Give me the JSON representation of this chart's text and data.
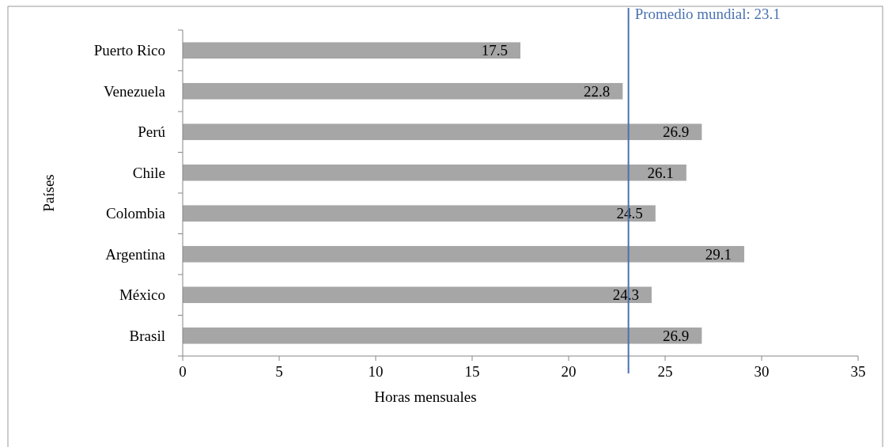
{
  "chart_data": {
    "type": "bar",
    "orientation": "horizontal",
    "xlabel": "Horas mensuales",
    "ylabel": "Países",
    "categories": [
      "Puerto Rico",
      "Venezuela",
      "Perú",
      "Chile",
      "Colombia",
      "Argentina",
      "México",
      "Brasil"
    ],
    "values": [
      17.5,
      22.8,
      26.9,
      26.1,
      24.5,
      29.1,
      24.3,
      26.9
    ],
    "color": "#a6a6a6",
    "data_labels": true,
    "xlim": [
      0,
      35
    ],
    "xticks": [
      0,
      5,
      10,
      15,
      20,
      25,
      30,
      35
    ],
    "grid": false,
    "ref_lines": [
      {
        "axis": "x",
        "value": 23.1,
        "label": "Promedio mundial: 23.1",
        "color": "#4a72b0"
      }
    ]
  }
}
